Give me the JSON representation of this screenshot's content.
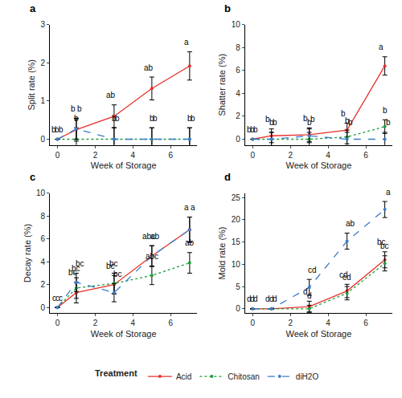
{
  "chart_data": [
    {
      "type": "line",
      "title": "a",
      "x_label": "Week of Storage",
      "y_label": "Split rate (%)",
      "x": [
        0,
        1,
        3,
        5,
        7
      ],
      "xlim": [
        -0.4,
        7.4
      ],
      "xticks": [
        0,
        2,
        4,
        6
      ],
      "ylim": [
        -0.15,
        3
      ],
      "yticks": [
        0,
        1,
        2,
        3
      ],
      "grid": false,
      "series": [
        {
          "name": "Acid",
          "color": "#E8312B",
          "line_style": "solid",
          "marker": "circle",
          "values": [
            0,
            0.25,
            0.6,
            1.33,
            1.92
          ],
          "error": [
            0,
            0.3,
            0.3,
            0.3,
            0.37
          ],
          "letters": [
            "b",
            "b",
            "ab",
            "ab",
            "a"
          ]
        },
        {
          "name": "Chitosan",
          "color": "#1E9E3C",
          "line_style": "dot",
          "marker": "circle",
          "values": [
            0,
            0,
            0,
            0,
            0
          ],
          "error": [
            0,
            0.3,
            0.3,
            0.3,
            0.3
          ],
          "letters": [
            "b",
            "b",
            "b",
            "b",
            "b"
          ]
        },
        {
          "name": "diH2O",
          "color": "#3A7CC9",
          "line_style": "dash",
          "marker": "circle",
          "values": [
            0,
            0.27,
            0,
            0,
            0
          ],
          "error": [
            0,
            0.27,
            0.3,
            0.3,
            0.3
          ],
          "letters": [
            "b",
            "b",
            "b",
            "b",
            "b"
          ]
        }
      ]
    },
    {
      "type": "line",
      "title": "b",
      "x_label": "Week of Storage",
      "y_label": "Shatter rate (%)",
      "x": [
        0,
        1,
        3,
        5,
        7
      ],
      "xlim": [
        -0.4,
        7.4
      ],
      "xticks": [
        0,
        2,
        4,
        6
      ],
      "ylim": [
        -0.5,
        10
      ],
      "yticks": [
        0,
        2,
        4,
        6,
        8,
        10
      ],
      "grid": false,
      "series": [
        {
          "name": "Acid",
          "color": "#E8312B",
          "line_style": "solid",
          "marker": "circle",
          "values": [
            0,
            0.3,
            0.4,
            0.8,
            6.4
          ],
          "error": [
            0,
            0.6,
            0.6,
            0.6,
            0.8
          ],
          "letters": [
            "b",
            "b",
            "b",
            "b",
            "a"
          ]
        },
        {
          "name": "Chitosan",
          "color": "#1E9E3C",
          "line_style": "dot",
          "marker": "circle",
          "values": [
            0,
            0,
            0,
            0.2,
            1.1
          ],
          "error": [
            0,
            0.6,
            0.6,
            0.6,
            0.6
          ],
          "letters": [
            "b",
            "b",
            "b",
            "b",
            "b"
          ]
        },
        {
          "name": "diH2O",
          "color": "#3A7CC9",
          "line_style": "dash",
          "marker": "circle",
          "values": [
            0,
            0,
            0.3,
            0,
            0
          ],
          "error": [
            0,
            0.6,
            0.6,
            0.6,
            0.6
          ],
          "letters": [
            "b",
            "b",
            "b",
            "b",
            "b"
          ]
        }
      ]
    },
    {
      "type": "line",
      "title": "c",
      "x_label": "Week of Storage",
      "y_label": "Decay rate (%)",
      "x": [
        0,
        1,
        3,
        5,
        7
      ],
      "xlim": [
        -0.4,
        7.4
      ],
      "xticks": [
        0,
        2,
        4,
        6
      ],
      "ylim": [
        -0.5,
        10
      ],
      "yticks": [
        0,
        2,
        4,
        6,
        8,
        10
      ],
      "grid": false,
      "series": [
        {
          "name": "Acid",
          "color": "#E8312B",
          "line_style": "solid",
          "marker": "circle",
          "values": [
            0,
            1.3,
            2.0,
            4.5,
            6.8
          ],
          "error": [
            0,
            0.9,
            0.8,
            0.9,
            1.1
          ],
          "letters": [
            "c",
            "bc",
            "bc",
            "abc",
            "a"
          ]
        },
        {
          "name": "Chitosan",
          "color": "#1E9E3C",
          "line_style": "dot",
          "marker": "circle",
          "values": [
            0,
            1.7,
            2.1,
            2.8,
            3.9
          ],
          "error": [
            0,
            0.9,
            0.9,
            0.8,
            0.9
          ],
          "letters": [
            "c",
            "bc",
            "bc",
            "abc",
            "ab"
          ]
        },
        {
          "name": "diH2O",
          "color": "#3A7CC9",
          "line_style": "dash",
          "marker": "circle",
          "values": [
            0,
            2.2,
            1.3,
            4.5,
            6.8
          ],
          "error": [
            0,
            0.8,
            0.8,
            0.9,
            1.1
          ],
          "letters": [
            "c",
            "bc",
            "bc",
            "ab",
            "a"
          ]
        }
      ]
    },
    {
      "type": "line",
      "title": "d",
      "x_label": "Week of Storage",
      "y_label": "Mold rate (%)",
      "x": [
        0,
        1,
        3,
        5,
        7
      ],
      "xlim": [
        -0.4,
        7.4
      ],
      "xticks": [
        0,
        2,
        4,
        6
      ],
      "ylim": [
        -1,
        26
      ],
      "yticks": [
        0,
        5,
        10,
        15,
        20,
        25
      ],
      "grid": false,
      "series": [
        {
          "name": "Acid",
          "color": "#E8312B",
          "line_style": "solid",
          "marker": "circle",
          "values": [
            0,
            0,
            0.5,
            4,
            11
          ],
          "error": [
            0,
            0,
            1.2,
            1.5,
            1.8
          ],
          "letters": [
            "d",
            "d",
            "d",
            "cd",
            "bc"
          ]
        },
        {
          "name": "Chitosan",
          "color": "#1E9E3C",
          "line_style": "dot",
          "marker": "circle",
          "values": [
            0,
            0,
            0,
            3.5,
            10.2
          ],
          "error": [
            0,
            0,
            0.8,
            1.5,
            1.7
          ],
          "letters": [
            "d",
            "d",
            "d",
            "cd",
            "bc"
          ]
        },
        {
          "name": "diH2O",
          "color": "#3A7CC9",
          "line_style": "dash",
          "marker": "circle",
          "values": [
            0,
            0,
            4.8,
            15.2,
            22.3
          ],
          "error": [
            0,
            0,
            1.8,
            1.8,
            1.8
          ],
          "letters": [
            "d",
            "d",
            "cd",
            "ab",
            "a"
          ]
        }
      ]
    }
  ],
  "legend": "bottom",
  "legend_title": "Treatment"
}
